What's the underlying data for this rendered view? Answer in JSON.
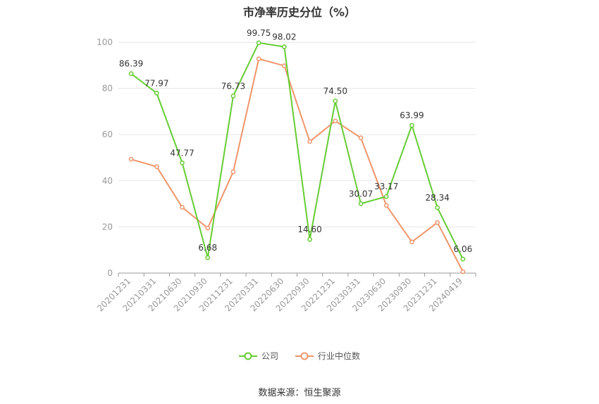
{
  "chart_data": {
    "type": "line",
    "title": "市净率历史分位（%）",
    "categories": [
      "20201231",
      "20210331",
      "20210630",
      "20210930",
      "20211231",
      "20220331",
      "20220630",
      "20220930",
      "20221231",
      "20230331",
      "20230630",
      "20230930",
      "20231231",
      "20240419"
    ],
    "series": [
      {
        "name": "公司",
        "color": "#66cc33",
        "values": [
          86.39,
          77.97,
          47.77,
          6.68,
          76.73,
          99.75,
          98.02,
          14.6,
          74.5,
          30.07,
          33.17,
          63.99,
          28.34,
          6.06
        ],
        "labels": [
          "86.39",
          "77.97",
          "47.77",
          "6.68",
          "76.73",
          "99.75",
          "98.02",
          "14.60",
          "74.50",
          "30.07",
          "33.17",
          "63.99",
          "28.34",
          "6.06"
        ]
      },
      {
        "name": "行业中位数",
        "color": "#f0956a",
        "values": [
          49.3,
          46.1,
          28.5,
          19.5,
          43.9,
          92.8,
          89.8,
          57.0,
          65.9,
          58.6,
          29.3,
          13.5,
          21.9,
          0.6
        ]
      }
    ],
    "yticks": [
      0,
      20,
      40,
      60,
      80,
      100
    ],
    "ylim": [
      0,
      100
    ],
    "grid": true,
    "legend_position": "bottom"
  },
  "source": "数据来源：恒生聚源"
}
